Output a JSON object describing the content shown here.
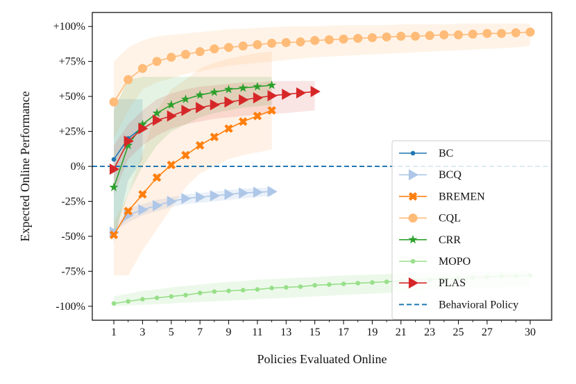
{
  "chart_data": {
    "type": "line",
    "title": "",
    "xlabel": "Policies Evaluated Online",
    "ylabel": "Expected Online Performance",
    "xlim": [
      -0.5,
      31.5
    ],
    "ylim": [
      -110,
      110
    ],
    "xticks": [
      1,
      3,
      5,
      7,
      9,
      11,
      13,
      15,
      17,
      19,
      21,
      23,
      25,
      27,
      30
    ],
    "xtick_labels": [
      "1",
      "3",
      "5",
      "7",
      "9",
      "11",
      "13",
      "15",
      "17",
      "19",
      "21",
      "23",
      "25",
      "27",
      "30"
    ],
    "yticks": [
      -100,
      -75,
      -50,
      -25,
      0,
      25,
      50,
      75,
      100
    ],
    "ytick_labels": [
      "-100%",
      "-75%",
      "-50%",
      "-25%",
      "0%",
      "+25%",
      "+50%",
      "+75%",
      "+100%"
    ],
    "grid": false,
    "legend_position": "lower-right",
    "series": [
      {
        "name": "BC",
        "color": "#1f77b4",
        "marker": "circle",
        "band_opacity": 0.14,
        "x": [
          1,
          2,
          3
        ],
        "values": [
          5,
          20,
          28
        ],
        "lower": [
          -55,
          -10,
          5
        ],
        "upper": [
          48,
          48,
          48
        ]
      },
      {
        "name": "BCQ",
        "color": "#aec7e8",
        "marker": "triangle-right",
        "band_opacity": 0.25,
        "x": [
          1,
          2,
          3,
          4,
          5,
          6,
          7,
          8,
          9,
          10,
          11,
          12
        ],
        "values": [
          -47,
          -35,
          -31,
          -28,
          -25,
          -23,
          -22,
          -21,
          -20,
          -19,
          -18.5,
          -18
        ],
        "lower": [
          -47,
          -40,
          -35,
          -32,
          -29,
          -27,
          -26,
          -25,
          -24,
          -23,
          -22,
          -21
        ],
        "upper": [
          -45,
          -30,
          -27,
          -24,
          -22,
          -20,
          -19,
          -18,
          -17,
          -16,
          -15.5,
          -15
        ]
      },
      {
        "name": "BREMEN",
        "color": "#ff7f0e",
        "marker": "x",
        "band_opacity": 0.11,
        "x": [
          1,
          2,
          3,
          4,
          5,
          6,
          7,
          8,
          9,
          10,
          11,
          12
        ],
        "values": [
          -49,
          -32,
          -20,
          -8,
          1,
          8,
          15,
          21,
          27,
          32,
          36,
          40
        ],
        "lower": [
          -78,
          -78,
          -60,
          -45,
          -30,
          -15,
          -5,
          0,
          5,
          8,
          10,
          12
        ],
        "upper": [
          -40,
          -20,
          10,
          40,
          55,
          62,
          70,
          74,
          77,
          79,
          81,
          82
        ]
      },
      {
        "name": "CQL",
        "color": "#ffbb78",
        "marker": "circle",
        "band_opacity": 0.18,
        "x": [
          1,
          2,
          3,
          4,
          5,
          6,
          7,
          8,
          9,
          10,
          11,
          12,
          13,
          14,
          15,
          16,
          17,
          18,
          19,
          20,
          21,
          22,
          23,
          24,
          25,
          26,
          27,
          28,
          29,
          30
        ],
        "values": [
          46,
          62,
          70,
          75,
          78,
          80,
          82,
          84,
          85,
          86,
          87,
          88,
          88.5,
          89,
          90,
          90.5,
          91,
          91.5,
          92,
          92.5,
          93,
          93,
          93.5,
          94,
          94,
          94.5,
          95,
          95,
          95.5,
          96
        ],
        "lower": [
          20,
          40,
          55,
          60,
          63,
          66,
          68,
          70,
          72,
          73,
          74,
          75,
          76,
          77,
          78,
          78.5,
          79,
          79.5,
          80,
          80.5,
          81,
          81.5,
          82,
          82.5,
          83,
          83.5,
          84,
          84.5,
          85,
          86
        ],
        "upper": [
          75,
          85,
          90,
          93,
          94,
          95,
          96,
          97,
          98,
          98.5,
          99,
          99.5,
          100,
          100,
          100,
          100.5,
          101,
          101,
          101,
          101,
          101.5,
          101.5,
          101.5,
          101.5,
          102,
          102,
          102,
          102,
          102,
          102
        ]
      },
      {
        "name": "CRR",
        "color": "#2ca02c",
        "marker": "star",
        "band_opacity": 0.13,
        "x": [
          1,
          2,
          3,
          4,
          5,
          6,
          7,
          8,
          9,
          10,
          11,
          12
        ],
        "values": [
          -15,
          15,
          30,
          38,
          44,
          48,
          51,
          53,
          55,
          56,
          57,
          58
        ],
        "lower": [
          -50,
          -20,
          0,
          15,
          25,
          30,
          35,
          38,
          40,
          42,
          43,
          44
        ],
        "upper": [
          40,
          62,
          64,
          64,
          64,
          64,
          64,
          64,
          64,
          64,
          64,
          64
        ]
      },
      {
        "name": "MOPO",
        "color": "#98df8a",
        "marker": "circle",
        "band_opacity": 0.18,
        "x": [
          1,
          2,
          3,
          4,
          5,
          6,
          7,
          8,
          9,
          10,
          11,
          12,
          13,
          14,
          15,
          16,
          17,
          18,
          19,
          20,
          21,
          22,
          23,
          24,
          25,
          26,
          27,
          28,
          29,
          30
        ],
        "values": [
          -98,
          -96.5,
          -95,
          -94,
          -93,
          -92,
          -90.5,
          -89.5,
          -89,
          -88.5,
          -88,
          -87,
          -86.5,
          -86,
          -85,
          -84.5,
          -84,
          -83.5,
          -83,
          -82.5,
          -82,
          -81.5,
          -81,
          -80.5,
          -80,
          -79.5,
          -79,
          -78.5,
          -78.5,
          -78
        ],
        "lower": [
          -100,
          -99.5,
          -99,
          -98.5,
          -98,
          -97.5,
          -97,
          -96.5,
          -96,
          -95.5,
          -95,
          -94.5,
          -94,
          -93.5,
          -93,
          -92.5,
          -92,
          -91.5,
          -91,
          -90.5,
          -90,
          -89.5,
          -89,
          -88.5,
          -88,
          -87.5,
          -87,
          -86.5,
          -86,
          -85.5
        ],
        "upper": [
          -93,
          -91,
          -89,
          -88,
          -86.5,
          -85.5,
          -84.5,
          -83.5,
          -82.5,
          -82,
          -81,
          -80.5,
          -80,
          -79.5,
          -79,
          -78.5,
          -78,
          -77.5,
          -77.5,
          -77,
          -76.5,
          -76.5,
          -76,
          -76,
          -75.5,
          -75.5,
          -75,
          -75,
          -75,
          -74.5
        ]
      },
      {
        "name": "PLAS",
        "color": "#d62728",
        "marker": "triangle-right",
        "band_opacity": 0.12,
        "x": [
          1,
          2,
          3,
          4,
          5,
          6,
          7,
          8,
          9,
          10,
          11,
          12,
          13,
          14,
          15
        ],
        "values": [
          -2,
          18,
          27,
          33,
          36,
          40,
          42,
          44,
          46,
          47.5,
          49,
          50.5,
          51.5,
          52.5,
          53.5
        ],
        "lower": [
          -20,
          5,
          15,
          22,
          27,
          30,
          32,
          34,
          35,
          36,
          37,
          37.5,
          38,
          39,
          40
        ],
        "upper": [
          15,
          30,
          40,
          48,
          52,
          55,
          57,
          58,
          59,
          60,
          60,
          61,
          61,
          61,
          61
        ]
      }
    ],
    "reference_line": {
      "name": "Behavioral Policy",
      "y": 0,
      "color": "#1f77b4",
      "style": "dashed"
    }
  }
}
